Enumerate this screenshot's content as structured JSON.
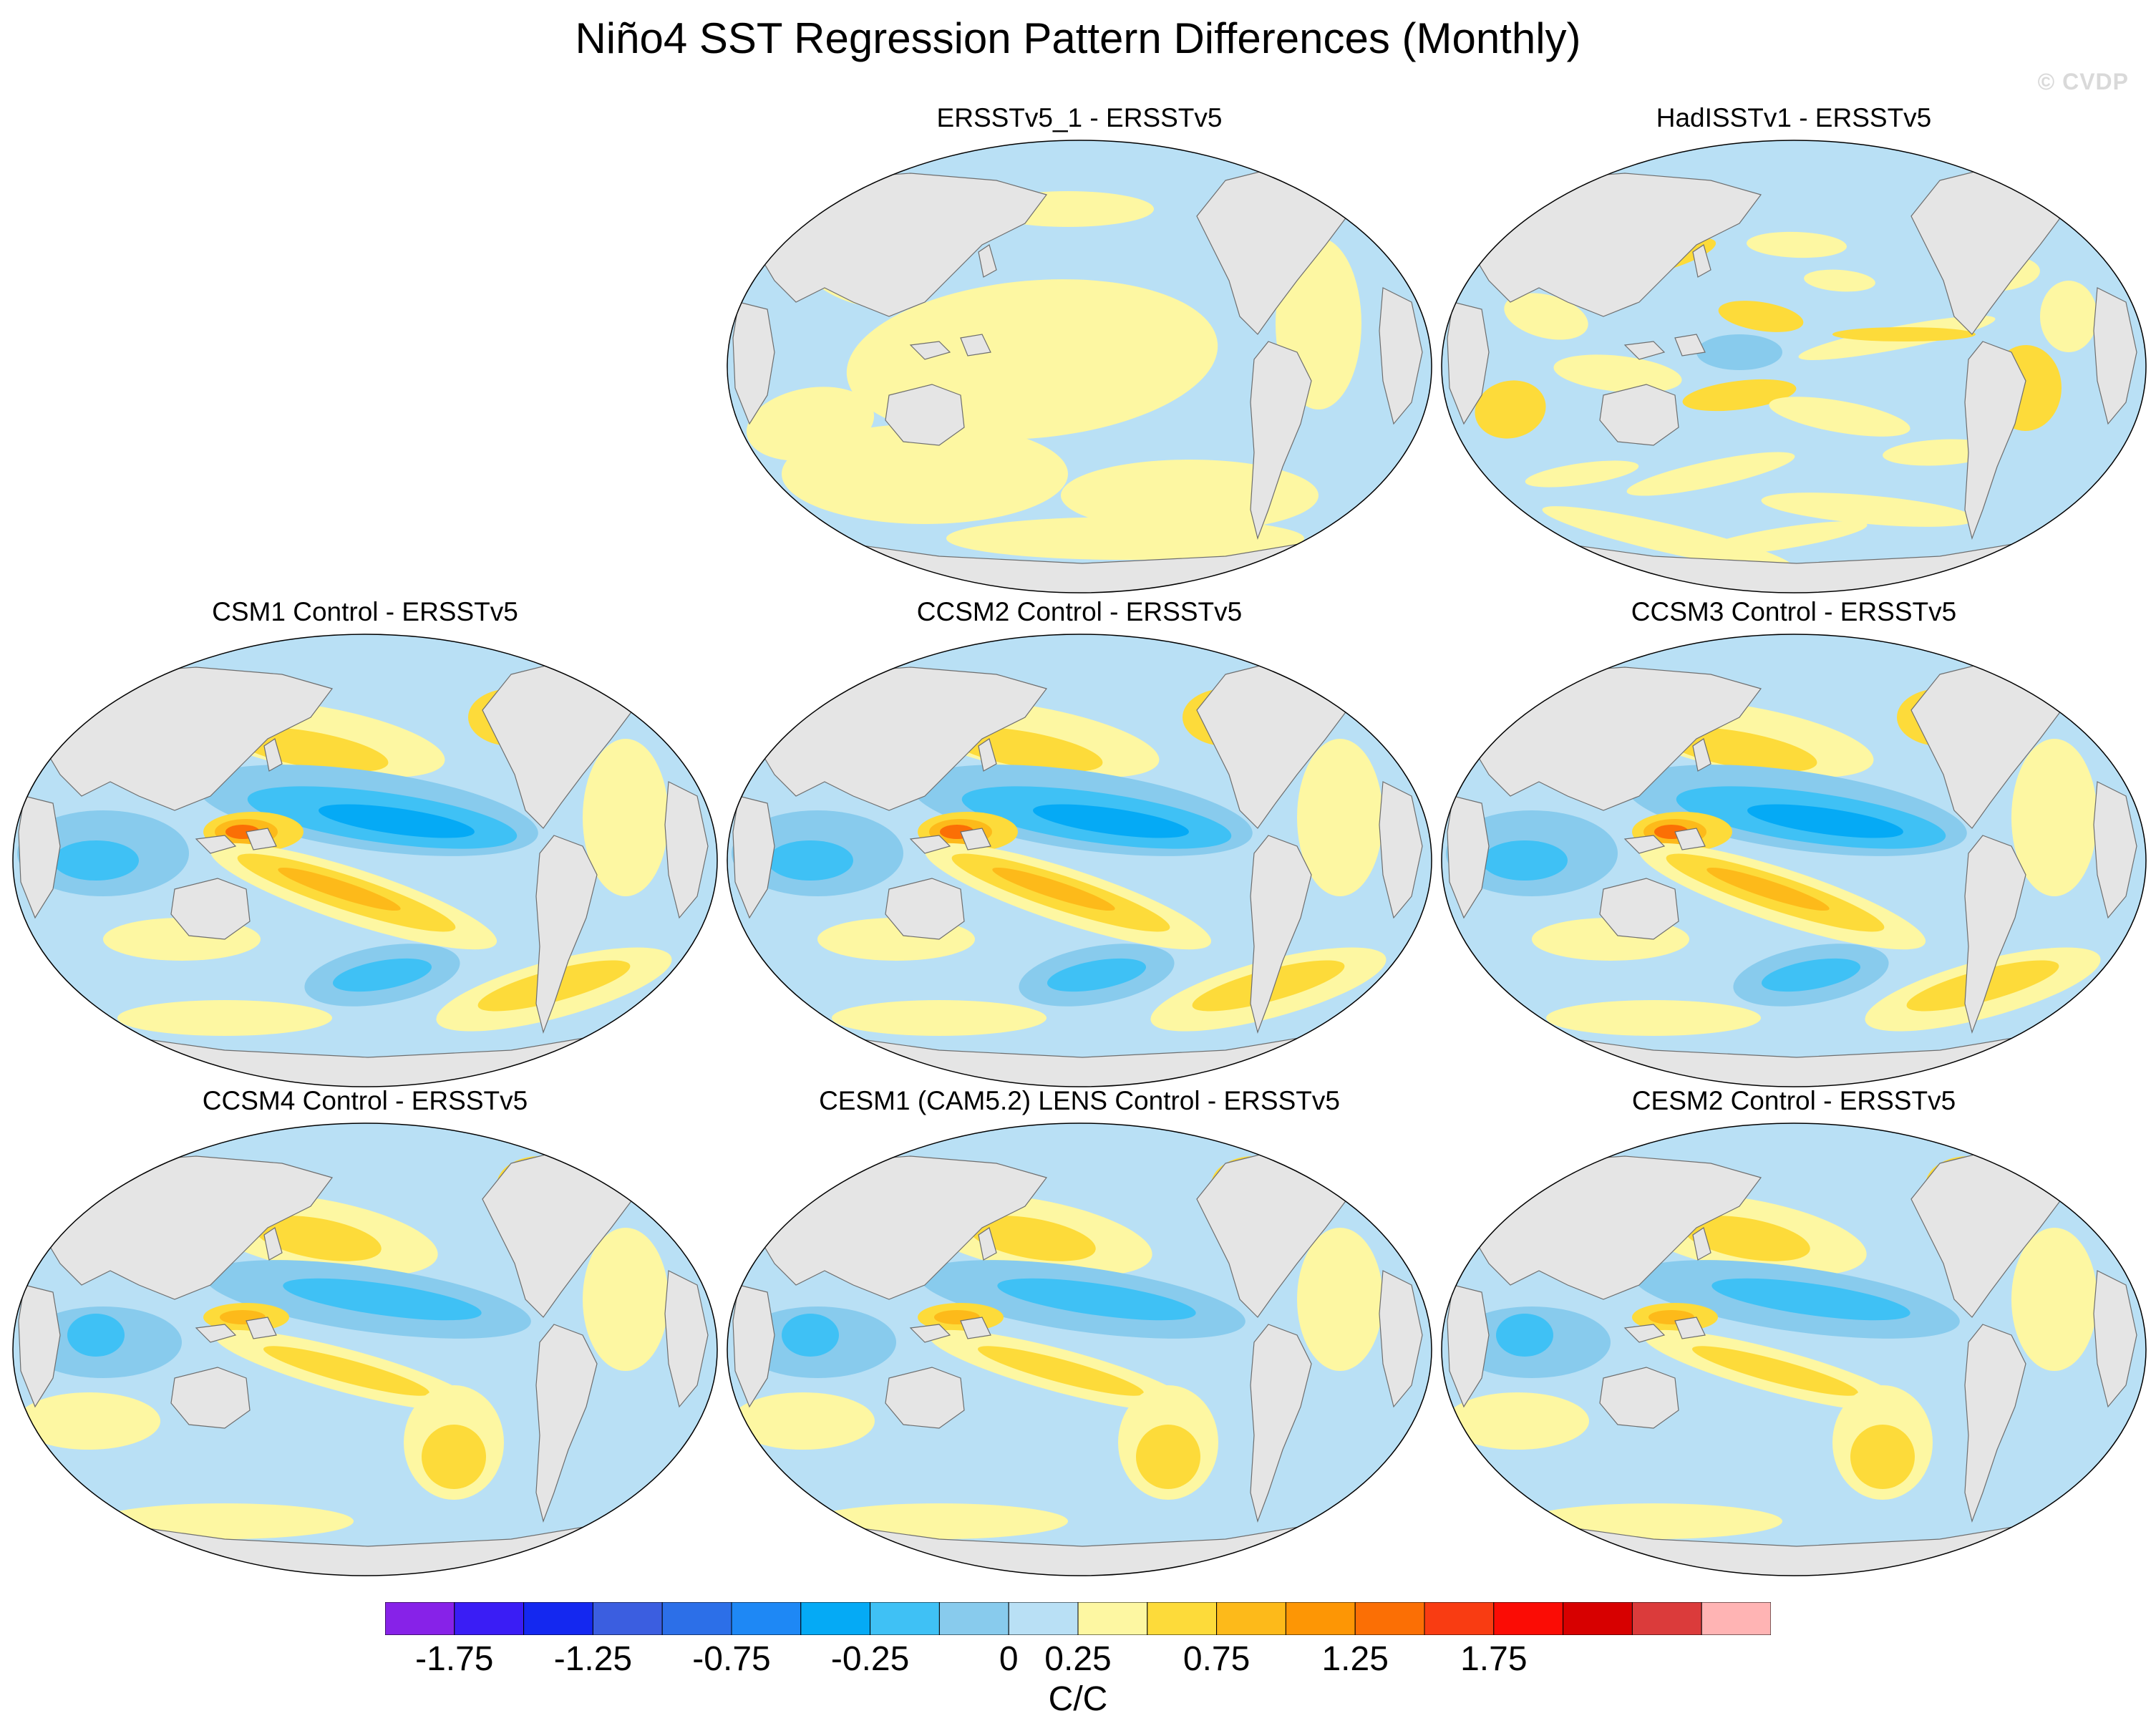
{
  "title": "Niño4 SST Regression Pattern Differences (Monthly)",
  "watermark": "© CVDP",
  "panels": [
    {
      "title": "ERSSTv5_1 - ERSSTv5",
      "pattern": "weak"
    },
    {
      "title": "HadISSTv1 - ERSSTv5",
      "pattern": "noisy"
    },
    {
      "title": "CSM1 Control - ERSSTv5",
      "pattern": "strong"
    },
    {
      "title": "CCSM2 Control - ERSSTv5",
      "pattern": "strong"
    },
    {
      "title": "CCSM3 Control - ERSSTv5",
      "pattern": "strong"
    },
    {
      "title": "CCSM4 Control - ERSSTv5",
      "pattern": "moderate"
    },
    {
      "title": "CESM1 (CAM5.2) LENS Control - ERSSTv5",
      "pattern": "moderate"
    },
    {
      "title": "CESM2 Control - ERSSTv5",
      "pattern": "moderate"
    }
  ],
  "colorbar": {
    "unit": "C/C",
    "colors": [
      "#8722e8",
      "#3a1df5",
      "#1428f0",
      "#3b5ee0",
      "#2c6fe8",
      "#1e88f5",
      "#05aaf5",
      "#3fc1f5",
      "#88cbed",
      "#b9e0f5",
      "#fdf7a2",
      "#fddb3a",
      "#fdba1a",
      "#fd9605",
      "#fb6f05",
      "#f93c12",
      "#fb0c05",
      "#d70000",
      "#db3b3b",
      "#ffb4b4"
    ],
    "tick_labels": [
      "-1.75",
      "-1.25",
      "-0.75",
      "-0.25",
      "0",
      "0.25",
      "0.75",
      "1.25",
      "1.75"
    ],
    "tick_box_index": [
      1,
      3,
      5,
      7,
      9,
      10,
      12,
      14,
      16
    ]
  },
  "chart_data": {
    "type": "heatmap",
    "title": "Niño4 SST Regression Pattern Differences (Monthly)",
    "units": "C/C",
    "levels": [
      -2.0,
      -1.75,
      -1.5,
      -1.25,
      -1.0,
      -0.75,
      -0.5,
      -0.25,
      -0.1,
      0,
      0.1,
      0.25,
      0.5,
      0.75,
      1.0,
      1.25,
      1.5,
      1.75,
      2.0
    ],
    "panels": [
      "ERSSTv5_1 - ERSSTv5",
      "HadISSTv1 - ERSSTv5",
      "CSM1 Control - ERSSTv5",
      "CCSM2 Control - ERSSTv5",
      "CCSM3 Control - ERSSTv5",
      "CCSM4 Control - ERSSTv5",
      "CESM1 (CAM5.2) LENS Control - ERSSTv5",
      "CESM2 Control - ERSSTv5"
    ]
  }
}
